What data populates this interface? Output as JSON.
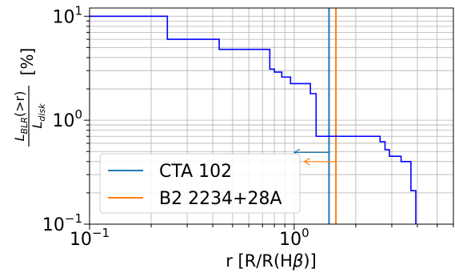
{
  "chart_data": {
    "type": "line",
    "xscale": "log",
    "yscale": "log",
    "xlim": [
      0.1,
      6.0
    ],
    "ylim": [
      0.1,
      12.0
    ],
    "grid": true,
    "xlabel": {
      "prefix": "r [R/R(H",
      "symbol": "β",
      "suffix": ")]"
    },
    "ylabel": {
      "num_main": "L",
      "num_sub": "BLR",
      "num_tail": "(>r)",
      "den_main": "L",
      "den_sub": "disk",
      "unit": "[%]"
    },
    "x_ticks": [
      {
        "value": 0.1,
        "base": "10",
        "exp": "−1"
      },
      {
        "value": 1.0,
        "base": "10",
        "exp": "0"
      }
    ],
    "y_ticks": [
      {
        "value": 0.1,
        "base": "10",
        "exp": "−1"
      },
      {
        "value": 1.0,
        "base": "10",
        "exp": "0"
      },
      {
        "value": 10.0,
        "base": "10",
        "exp": "1"
      }
    ],
    "step_series": {
      "color": "#0000ff",
      "x": [
        0.1,
        0.24,
        0.24,
        0.43,
        0.43,
        0.76,
        0.76,
        0.8,
        0.8,
        0.87,
        0.87,
        0.96,
        0.96,
        1.2,
        1.2,
        1.28,
        1.28,
        2.63,
        2.63,
        2.78,
        2.78,
        2.92,
        2.92,
        3.33,
        3.33,
        3.72,
        3.72,
        3.93,
        3.93
      ],
      "y": [
        10.0,
        10.0,
        6.0,
        6.0,
        4.8,
        4.8,
        3.1,
        3.1,
        2.9,
        2.9,
        2.6,
        2.6,
        2.25,
        2.25,
        1.8,
        1.8,
        0.7,
        0.7,
        0.62,
        0.62,
        0.52,
        0.52,
        0.45,
        0.45,
        0.4,
        0.4,
        0.21,
        0.21,
        0.1
      ]
    },
    "series": [
      {
        "name": "CTA 102",
        "color": "#1f77b4",
        "x": 1.48,
        "arrow_from": 1.48,
        "arrow_to": 1.0,
        "arrow_y": 0.49
      },
      {
        "name": "B2 2234+28A",
        "color": "#ff7f0e",
        "x": 1.6,
        "arrow_from": 1.6,
        "arrow_to": 1.12,
        "arrow_y": 0.4
      }
    ],
    "legend_position": "lower-left"
  }
}
